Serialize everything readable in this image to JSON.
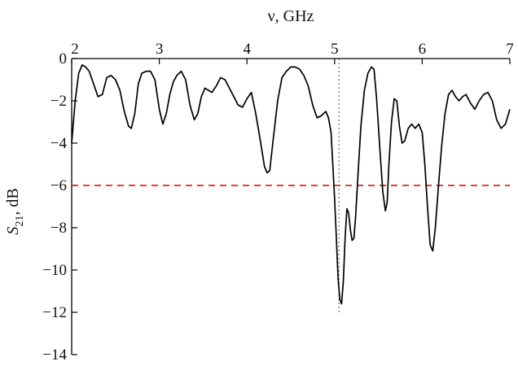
{
  "chart_data": {
    "type": "line",
    "xlabel": "ν, GHz",
    "ylabel_main": "S",
    "ylabel_sub": "21",
    "ylabel_rest": ", dB",
    "xlim": [
      2,
      7
    ],
    "ylim": [
      -14,
      0
    ],
    "x_ticks": [
      2,
      3,
      4,
      5,
      6,
      7
    ],
    "y_ticks": [
      0,
      -2,
      -4,
      -6,
      -8,
      -10,
      -12,
      -14
    ],
    "x_tick_labels": [
      "2",
      "3",
      "4",
      "5",
      "6",
      "7"
    ],
    "y_tick_labels": [
      "0",
      "−2",
      "−4",
      "−6",
      "−8",
      "−10",
      "−12",
      "−14"
    ],
    "x_axis_position": "top",
    "grid": false,
    "threshold_line": {
      "y": -6,
      "color": "#e8231e",
      "style": "dashed"
    },
    "marker_line": {
      "x": 5.05,
      "color": "#555555",
      "style": "dotted"
    },
    "series": [
      {
        "color": "#000000",
        "x": [
          2.0,
          2.04,
          2.08,
          2.12,
          2.16,
          2.2,
          2.25,
          2.3,
          2.35,
          2.4,
          2.45,
          2.5,
          2.55,
          2.6,
          2.65,
          2.68,
          2.72,
          2.76,
          2.8,
          2.85,
          2.9,
          2.95,
          3.0,
          3.04,
          3.08,
          3.12,
          3.16,
          3.2,
          3.25,
          3.3,
          3.35,
          3.4,
          3.44,
          3.48,
          3.52,
          3.56,
          3.6,
          3.65,
          3.7,
          3.75,
          3.8,
          3.85,
          3.9,
          3.95,
          4.0,
          4.05,
          4.1,
          4.15,
          4.2,
          4.23,
          4.26,
          4.3,
          4.35,
          4.4,
          4.45,
          4.5,
          4.55,
          4.6,
          4.65,
          4.7,
          4.75,
          4.8,
          4.85,
          4.9,
          4.93,
          4.96,
          4.98,
          5.0,
          5.02,
          5.04,
          5.06,
          5.08,
          5.1,
          5.12,
          5.14,
          5.16,
          5.18,
          5.2,
          5.22,
          5.24,
          5.26,
          5.3,
          5.34,
          5.38,
          5.42,
          5.45,
          5.48,
          5.52,
          5.55,
          5.58,
          5.6,
          5.62,
          5.65,
          5.68,
          5.71,
          5.74,
          5.77,
          5.8,
          5.84,
          5.88,
          5.92,
          5.96,
          6.0,
          6.03,
          6.06,
          6.09,
          6.12,
          6.15,
          6.18,
          6.22,
          6.26,
          6.3,
          6.34,
          6.38,
          6.42,
          6.46,
          6.5,
          6.55,
          6.6,
          6.65,
          6.7,
          6.75,
          6.8,
          6.85,
          6.9,
          6.95,
          7.0
        ],
        "y": [
          -4.0,
          -2.0,
          -0.7,
          -0.3,
          -0.4,
          -0.6,
          -1.2,
          -1.8,
          -1.7,
          -0.9,
          -0.8,
          -1.0,
          -1.5,
          -2.5,
          -3.2,
          -3.3,
          -2.6,
          -1.2,
          -0.7,
          -0.6,
          -0.6,
          -1.0,
          -2.4,
          -3.1,
          -2.6,
          -1.7,
          -1.1,
          -0.8,
          -0.6,
          -1.0,
          -2.2,
          -2.9,
          -2.6,
          -1.8,
          -1.4,
          -1.5,
          -1.6,
          -1.3,
          -0.9,
          -1.0,
          -1.4,
          -1.8,
          -2.2,
          -2.3,
          -1.9,
          -1.6,
          -2.6,
          -3.8,
          -5.1,
          -5.4,
          -5.3,
          -3.8,
          -2.0,
          -0.9,
          -0.6,
          -0.4,
          -0.4,
          -0.5,
          -0.8,
          -1.3,
          -2.2,
          -2.8,
          -2.7,
          -2.5,
          -2.8,
          -3.5,
          -5.0,
          -6.6,
          -8.5,
          -10.4,
          -11.4,
          -11.6,
          -10.5,
          -8.5,
          -7.1,
          -7.3,
          -8.1,
          -8.6,
          -8.5,
          -7.5,
          -6.0,
          -3.2,
          -1.5,
          -0.7,
          -0.4,
          -0.5,
          -1.9,
          -4.5,
          -6.3,
          -7.2,
          -6.8,
          -5.0,
          -3.0,
          -1.9,
          -2.0,
          -3.2,
          -4.0,
          -3.9,
          -3.3,
          -3.1,
          -3.3,
          -3.1,
          -3.5,
          -5.0,
          -7.0,
          -8.8,
          -9.1,
          -8.0,
          -6.3,
          -4.2,
          -2.6,
          -1.7,
          -1.5,
          -1.8,
          -2.0,
          -1.8,
          -1.7,
          -2.1,
          -2.4,
          -2.0,
          -1.7,
          -1.6,
          -2.0,
          -2.9,
          -3.3,
          -3.1,
          -2.4
        ]
      }
    ]
  }
}
